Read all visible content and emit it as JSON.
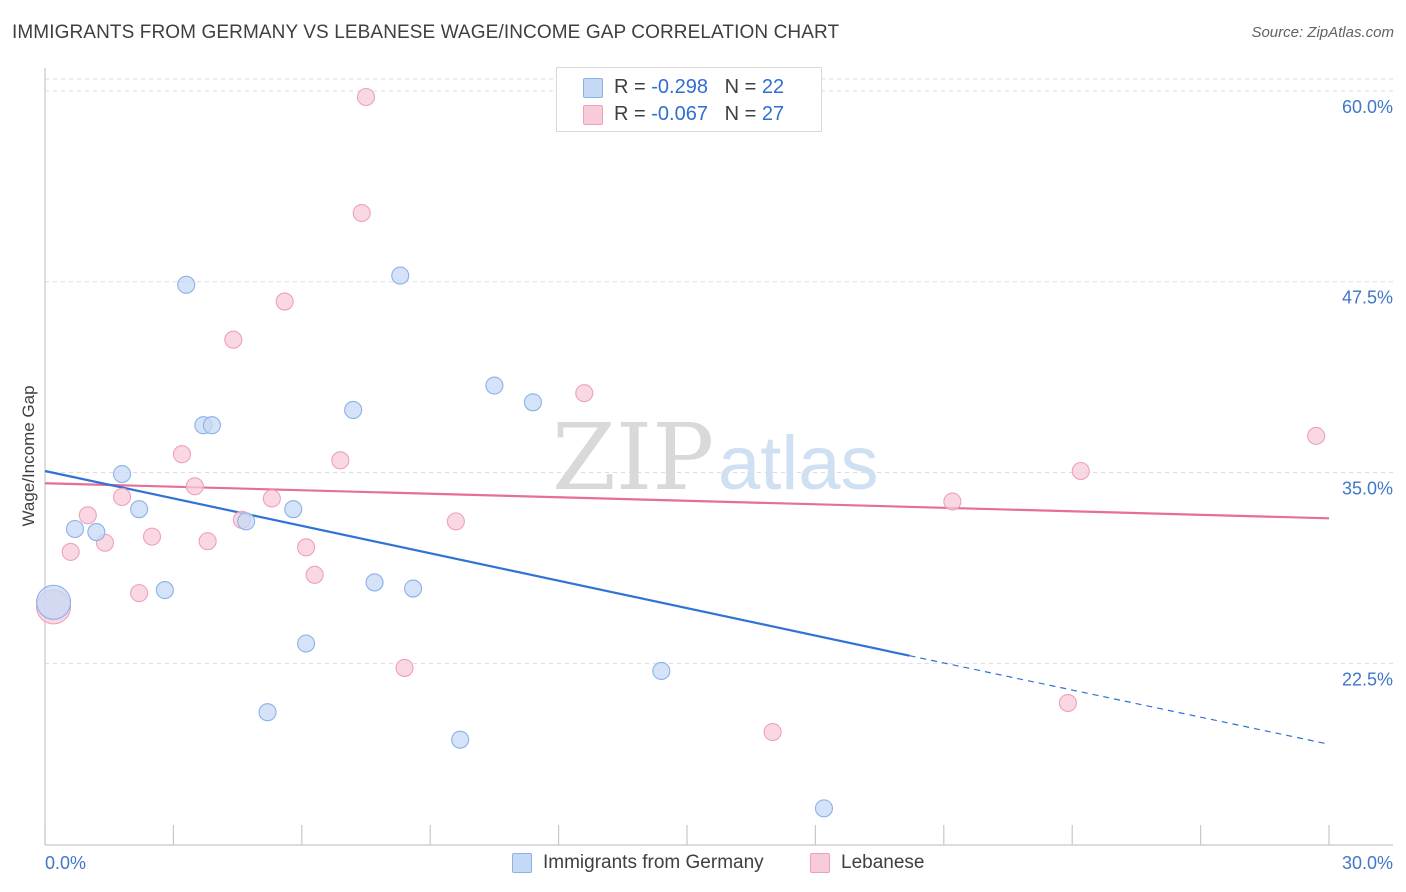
{
  "title": "IMMIGRANTS FROM GERMANY VS LEBANESE WAGE/INCOME GAP CORRELATION CHART",
  "source": "Source: ZipAtlas.com",
  "watermark": {
    "zip": "ZIP",
    "atlas": "atlas"
  },
  "legend": {
    "germany": {
      "r_label": "R = ",
      "r_value": "-0.298",
      "n_label": "N = ",
      "n_value": "22"
    },
    "lebanese": {
      "r_label": "R = ",
      "r_value": "-0.067",
      "n_label": "N = ",
      "n_value": "27"
    }
  },
  "bottom_legend": {
    "germany": "Immigrants from Germany",
    "lebanese": "Lebanese"
  },
  "colors": {
    "germany_fill": "#c5d9f5",
    "germany_stroke": "#8bb2e6",
    "germany_line": "#2f73d6",
    "lebanese_fill": "#f8cbd9",
    "lebanese_stroke": "#eea1b9",
    "lebanese_line": "#e56f96",
    "grid": "#dadce0",
    "axis_text": "#3f77c9"
  },
  "chart_data": {
    "type": "scatter",
    "title": "IMMIGRANTS FROM GERMANY VS LEBANESE WAGE/INCOME GAP CORRELATION CHART",
    "xlabel": "",
    "ylabel": "Wage/Income Gap",
    "xlim": [
      0,
      30
    ],
    "ylim": [
      10.6,
      61.5
    ],
    "x_tick_labels": [
      "0.0%",
      "30.0%"
    ],
    "y_ticks": [
      22.5,
      35.0,
      47.5,
      60.0
    ],
    "y_tick_labels": [
      "22.5%",
      "35.0%",
      "47.5%",
      "60.0%"
    ],
    "grid": true,
    "series": [
      {
        "name": "Immigrants from Germany",
        "points": [
          [
            0.2,
            26.5,
            2
          ],
          [
            0.7,
            31.3,
            1
          ],
          [
            1.2,
            31.1,
            1
          ],
          [
            1.8,
            34.9,
            1
          ],
          [
            2.2,
            32.6,
            1
          ],
          [
            2.8,
            27.3,
            1
          ],
          [
            3.3,
            47.3,
            1
          ],
          [
            3.7,
            38.1,
            1
          ],
          [
            3.9,
            38.1,
            1
          ],
          [
            4.7,
            31.8,
            1
          ],
          [
            5.2,
            19.3,
            1
          ],
          [
            5.8,
            32.6,
            1
          ],
          [
            6.1,
            23.8,
            1
          ],
          [
            7.2,
            39.1,
            1
          ],
          [
            7.7,
            27.8,
            1
          ],
          [
            8.3,
            47.9,
            1
          ],
          [
            8.6,
            27.4,
            1
          ],
          [
            9.7,
            17.5,
            1
          ],
          [
            10.5,
            40.7,
            1
          ],
          [
            11.4,
            39.6,
            1
          ],
          [
            14.4,
            22.0,
            1
          ],
          [
            18.2,
            13.0,
            1
          ]
        ],
        "trend": {
          "x0": 0,
          "y0": 35.1,
          "x1": 20.2,
          "y1": 23.0,
          "dashed_to_x": 30,
          "dashed_to_y": 17.2
        }
      },
      {
        "name": "Lebanese",
        "points": [
          [
            0.2,
            26.2,
            2
          ],
          [
            0.6,
            29.8,
            1
          ],
          [
            1.0,
            32.2,
            1
          ],
          [
            1.4,
            30.4,
            1
          ],
          [
            1.8,
            33.4,
            1
          ],
          [
            2.2,
            27.1,
            1
          ],
          [
            2.5,
            30.8,
            1
          ],
          [
            3.2,
            36.2,
            1
          ],
          [
            3.5,
            34.1,
            1
          ],
          [
            3.8,
            30.5,
            1
          ],
          [
            4.4,
            43.7,
            1
          ],
          [
            4.6,
            31.9,
            1
          ],
          [
            5.3,
            33.3,
            1
          ],
          [
            5.6,
            46.2,
            1
          ],
          [
            6.1,
            30.1,
            1
          ],
          [
            6.3,
            28.3,
            1
          ],
          [
            6.9,
            35.8,
            1
          ],
          [
            7.4,
            52.0,
            1
          ],
          [
            7.5,
            59.6,
            1
          ],
          [
            8.4,
            22.2,
            1
          ],
          [
            9.6,
            31.8,
            1
          ],
          [
            12.6,
            40.2,
            1
          ],
          [
            17.0,
            18.0,
            1
          ],
          [
            21.2,
            33.1,
            1
          ],
          [
            23.9,
            19.9,
            1
          ],
          [
            24.2,
            35.1,
            1
          ],
          [
            29.7,
            37.4,
            1
          ]
        ],
        "trend": {
          "x0": 0,
          "y0": 34.3,
          "x1": 30,
          "y1": 32.0
        }
      }
    ]
  }
}
